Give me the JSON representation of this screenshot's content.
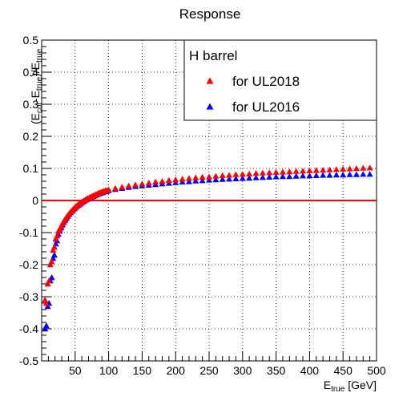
{
  "chart_data": {
    "type": "scatter",
    "title": "Response",
    "xlabel": {
      "main": "E",
      "sub": "true",
      "unit": " [GeV]"
    },
    "ylabel": {
      "open": "(E",
      "sub1": "cor",
      "mid": "-E",
      "sub2": "true",
      "div": ")/E",
      "sub3": "true"
    },
    "xlim": [
      0,
      500
    ],
    "ylim": [
      -0.5,
      0.5
    ],
    "xticks": [
      50,
      100,
      150,
      200,
      250,
      300,
      350,
      400,
      450,
      500
    ],
    "yticks": [
      -0.5,
      -0.4,
      -0.3,
      -0.2,
      -0.1,
      0,
      0.1,
      0.2,
      0.3,
      0.4,
      0.5
    ],
    "grid": true,
    "reference_line_y": 0,
    "legend": {
      "title": "H barrel",
      "position": "top-right"
    },
    "series": [
      {
        "name": "for UL2018",
        "color": "#ff0000",
        "marker": "triangle",
        "points": [
          [
            5,
            -0.31
          ],
          [
            7,
            -0.32
          ],
          [
            9,
            -0.26
          ],
          [
            11,
            -0.25
          ],
          [
            13,
            -0.2
          ],
          [
            15,
            -0.19
          ],
          [
            17,
            -0.155
          ],
          [
            19,
            -0.145
          ],
          [
            21,
            -0.12
          ],
          [
            23,
            -0.11
          ],
          [
            25,
            -0.095
          ],
          [
            27,
            -0.09
          ],
          [
            29,
            -0.08
          ],
          [
            31,
            -0.072
          ],
          [
            33,
            -0.065
          ],
          [
            35,
            -0.058
          ],
          [
            37,
            -0.052
          ],
          [
            39,
            -0.046
          ],
          [
            41,
            -0.041
          ],
          [
            43,
            -0.036
          ],
          [
            45,
            -0.031
          ],
          [
            47,
            -0.027
          ],
          [
            49,
            -0.023
          ],
          [
            51,
            -0.019
          ],
          [
            53,
            -0.015
          ],
          [
            55,
            -0.012
          ],
          [
            57,
            -0.009
          ],
          [
            59,
            -0.006
          ],
          [
            61,
            -0.003
          ],
          [
            63,
            0.0
          ],
          [
            65,
            0.002
          ],
          [
            67,
            0.005
          ],
          [
            69,
            0.007
          ],
          [
            71,
            0.009
          ],
          [
            73,
            0.011
          ],
          [
            75,
            0.013
          ],
          [
            77,
            0.015
          ],
          [
            79,
            0.017
          ],
          [
            81,
            0.019
          ],
          [
            83,
            0.021
          ],
          [
            85,
            0.023
          ],
          [
            87,
            0.025
          ],
          [
            89,
            0.026
          ],
          [
            91,
            0.028
          ],
          [
            93,
            0.029
          ],
          [
            95,
            0.031
          ],
          [
            97,
            0.032
          ],
          [
            100,
            0.034
          ],
          [
            110,
            0.038
          ],
          [
            120,
            0.042
          ],
          [
            130,
            0.046
          ],
          [
            140,
            0.049
          ],
          [
            150,
            0.052
          ],
          [
            160,
            0.055
          ],
          [
            170,
            0.058
          ],
          [
            180,
            0.06
          ],
          [
            190,
            0.063
          ],
          [
            200,
            0.065
          ],
          [
            210,
            0.067
          ],
          [
            220,
            0.069
          ],
          [
            230,
            0.071
          ],
          [
            240,
            0.073
          ],
          [
            250,
            0.074
          ],
          [
            260,
            0.076
          ],
          [
            270,
            0.078
          ],
          [
            280,
            0.079
          ],
          [
            290,
            0.081
          ],
          [
            300,
            0.082
          ],
          [
            310,
            0.083
          ],
          [
            320,
            0.085
          ],
          [
            330,
            0.086
          ],
          [
            340,
            0.087
          ],
          [
            350,
            0.088
          ],
          [
            360,
            0.089
          ],
          [
            370,
            0.09
          ],
          [
            380,
            0.091
          ],
          [
            390,
            0.092
          ],
          [
            400,
            0.093
          ],
          [
            410,
            0.094
          ],
          [
            420,
            0.095
          ],
          [
            430,
            0.096
          ],
          [
            440,
            0.097
          ],
          [
            450,
            0.098
          ],
          [
            460,
            0.099
          ],
          [
            470,
            0.1
          ],
          [
            480,
            0.101
          ],
          [
            490,
            0.102
          ]
        ]
      },
      {
        "name": "for UL2016",
        "color": "#0000ff",
        "marker": "triangle",
        "points": [
          [
            5,
            -0.4
          ],
          [
            7,
            -0.39
          ],
          [
            9,
            -0.33
          ],
          [
            11,
            -0.32
          ],
          [
            13,
            -0.25
          ],
          [
            15,
            -0.24
          ],
          [
            17,
            -0.18
          ],
          [
            19,
            -0.17
          ],
          [
            21,
            -0.135
          ],
          [
            23,
            -0.125
          ],
          [
            25,
            -0.105
          ],
          [
            27,
            -0.095
          ],
          [
            29,
            -0.085
          ],
          [
            31,
            -0.076
          ],
          [
            33,
            -0.068
          ],
          [
            35,
            -0.061
          ],
          [
            37,
            -0.055
          ],
          [
            39,
            -0.049
          ],
          [
            41,
            -0.043
          ],
          [
            43,
            -0.038
          ],
          [
            45,
            -0.033
          ],
          [
            47,
            -0.029
          ],
          [
            49,
            -0.025
          ],
          [
            51,
            -0.021
          ],
          [
            53,
            -0.017
          ],
          [
            55,
            -0.014
          ],
          [
            57,
            -0.011
          ],
          [
            59,
            -0.008
          ],
          [
            61,
            -0.005
          ],
          [
            63,
            -0.002
          ],
          [
            65,
            0.001
          ],
          [
            67,
            0.003
          ],
          [
            69,
            0.005
          ],
          [
            71,
            0.007
          ],
          [
            73,
            0.009
          ],
          [
            75,
            0.011
          ],
          [
            77,
            0.013
          ],
          [
            79,
            0.015
          ],
          [
            81,
            0.017
          ],
          [
            83,
            0.019
          ],
          [
            85,
            0.021
          ],
          [
            87,
            0.022
          ],
          [
            89,
            0.024
          ],
          [
            91,
            0.025
          ],
          [
            93,
            0.027
          ],
          [
            95,
            0.028
          ],
          [
            97,
            0.029
          ],
          [
            100,
            0.031
          ],
          [
            110,
            0.035
          ],
          [
            120,
            0.038
          ],
          [
            130,
            0.041
          ],
          [
            140,
            0.044
          ],
          [
            150,
            0.046
          ],
          [
            160,
            0.048
          ],
          [
            170,
            0.05
          ],
          [
            180,
            0.052
          ],
          [
            190,
            0.054
          ],
          [
            200,
            0.056
          ],
          [
            210,
            0.058
          ],
          [
            220,
            0.059
          ],
          [
            230,
            0.061
          ],
          [
            240,
            0.062
          ],
          [
            250,
            0.064
          ],
          [
            260,
            0.065
          ],
          [
            270,
            0.066
          ],
          [
            280,
            0.067
          ],
          [
            290,
            0.068
          ],
          [
            300,
            0.069
          ],
          [
            310,
            0.07
          ],
          [
            320,
            0.071
          ],
          [
            330,
            0.072
          ],
          [
            340,
            0.073
          ],
          [
            350,
            0.074
          ],
          [
            360,
            0.075
          ],
          [
            370,
            0.075
          ],
          [
            380,
            0.076
          ],
          [
            390,
            0.077
          ],
          [
            400,
            0.077
          ],
          [
            410,
            0.078
          ],
          [
            420,
            0.079
          ],
          [
            430,
            0.079
          ],
          [
            440,
            0.08
          ],
          [
            450,
            0.08
          ],
          [
            460,
            0.081
          ],
          [
            470,
            0.081
          ],
          [
            480,
            0.082
          ],
          [
            490,
            0.082
          ]
        ]
      }
    ]
  }
}
